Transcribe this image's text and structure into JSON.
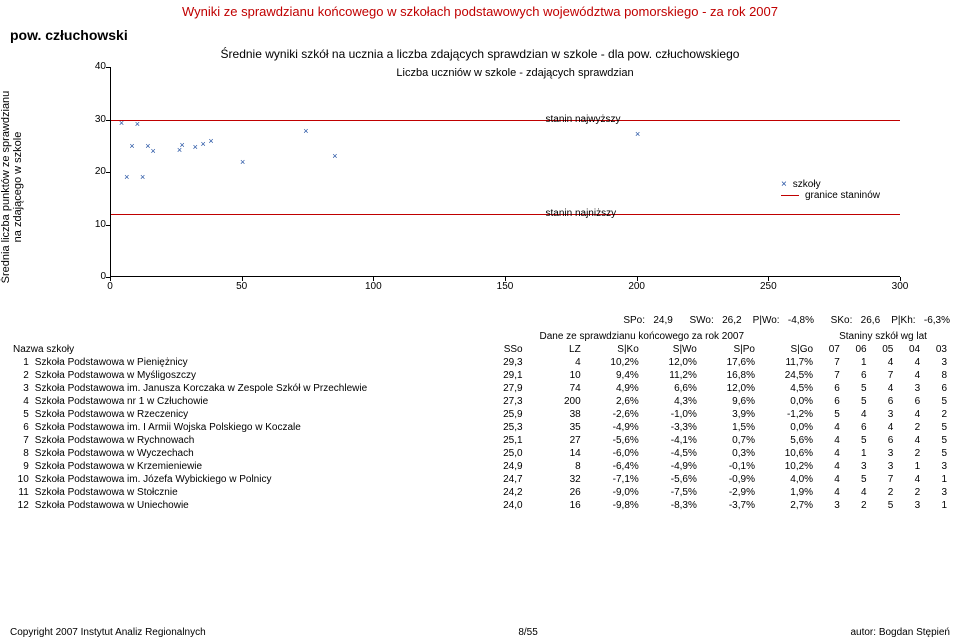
{
  "page_title": "Wyniki ze sprawdzianu końcowego w szkołach podstawowych województwa pomorskiego - za rok 2007",
  "subtitle": "pow. człuchowski",
  "chart_title": "Średnie wyniki szkół na ucznia a liczba zdających sprawdzian w szkole - dla pow. człuchowskiego",
  "chart": {
    "ylabel": "Średnia liczba punktów ze sprawdzianu na zdającego w szkole",
    "xlabel": "Liczba uczniów w szkole - zdających sprawdzian",
    "xlim": [
      0,
      300
    ],
    "ylim": [
      0,
      40
    ],
    "yticks": [
      0,
      10,
      20,
      30,
      40
    ],
    "xticks": [
      0,
      50,
      100,
      150,
      200,
      250,
      300
    ],
    "marker_color": "#1f4ea1",
    "line_color": "#c00000",
    "stanin_low": {
      "y": 12,
      "label": "stanin najniższy"
    },
    "stanin_high": {
      "y": 30,
      "label": "stanin najwyższy"
    },
    "legend": {
      "schools": "szkoły",
      "bounds": "granice staninów"
    },
    "points": [
      {
        "x": 4,
        "y": 29.3
      },
      {
        "x": 10,
        "y": 29.1
      },
      {
        "x": 74,
        "y": 27.9
      },
      {
        "x": 200,
        "y": 27.3
      },
      {
        "x": 38,
        "y": 25.9
      },
      {
        "x": 35,
        "y": 25.3
      },
      {
        "x": 27,
        "y": 25.1
      },
      {
        "x": 14,
        "y": 25.0
      },
      {
        "x": 8,
        "y": 24.9
      },
      {
        "x": 32,
        "y": 24.7
      },
      {
        "x": 26,
        "y": 24.2
      },
      {
        "x": 16,
        "y": 24.0
      },
      {
        "x": 85,
        "y": 23.0
      },
      {
        "x": 50,
        "y": 22.0
      },
      {
        "x": 12,
        "y": 19.0
      },
      {
        "x": 6,
        "y": 19.0
      }
    ]
  },
  "stats": {
    "SPo_label": "SPo:",
    "SPo": "24,9",
    "SWo_label": "SWo:",
    "SWo": "26,2",
    "PWo_label": "P|Wo:",
    "PWo": "-4,8%",
    "SKo_label": "SKo:",
    "SKo": "26,6",
    "PKh_label": "P|Kh:",
    "PKh": "-6,3%"
  },
  "table": {
    "name_header": "Nazwa szkoły",
    "group1": "Dane ze sprawdzianu końcowego za rok 2007",
    "group2": "Staniny szkół wg lat",
    "cols1": [
      "SSo",
      "LZ",
      "S|Ko",
      "S|Wo",
      "S|Po",
      "S|Go"
    ],
    "cols2": [
      "07",
      "06",
      "05",
      "04",
      "03"
    ],
    "rows": [
      {
        "n": "1",
        "name": "Szkoła Podstawowa w Pieniężnicy",
        "v": [
          "29,3",
          "4",
          "10,2%",
          "12,0%",
          "17,6%",
          "11,7%",
          "7",
          "1",
          "4",
          "4",
          "3"
        ]
      },
      {
        "n": "2",
        "name": "Szkoła Podstawowa w Myśligoszczy",
        "v": [
          "29,1",
          "10",
          "9,4%",
          "11,2%",
          "16,8%",
          "24,5%",
          "7",
          "6",
          "7",
          "4",
          "8"
        ]
      },
      {
        "n": "3",
        "name": "Szkoła Podstawowa im. Janusza Korczaka w Zespole Szkół w Przechlewie",
        "v": [
          "27,9",
          "74",
          "4,9%",
          "6,6%",
          "12,0%",
          "4,5%",
          "6",
          "5",
          "4",
          "3",
          "6"
        ]
      },
      {
        "n": "4",
        "name": "Szkoła Podstawowa nr 1 w Człuchowie",
        "v": [
          "27,3",
          "200",
          "2,6%",
          "4,3%",
          "9,6%",
          "0,0%",
          "6",
          "5",
          "6",
          "6",
          "5"
        ]
      },
      {
        "n": "5",
        "name": "Szkoła Podstawowa w Rzeczenicy",
        "v": [
          "25,9",
          "38",
          "-2,6%",
          "-1,0%",
          "3,9%",
          "-1,2%",
          "5",
          "4",
          "3",
          "4",
          "2"
        ]
      },
      {
        "n": "6",
        "name": "Szkoła Podstawowa im. I Armii Wojska Polskiego w Koczale",
        "v": [
          "25,3",
          "35",
          "-4,9%",
          "-3,3%",
          "1,5%",
          "0,0%",
          "4",
          "6",
          "4",
          "2",
          "5"
        ]
      },
      {
        "n": "7",
        "name": "Szkoła Podstawowa w Rychnowach",
        "v": [
          "25,1",
          "27",
          "-5,6%",
          "-4,1%",
          "0,7%",
          "5,6%",
          "4",
          "5",
          "6",
          "4",
          "5"
        ]
      },
      {
        "n": "8",
        "name": "Szkoła Podstawowa w Wyczechach",
        "v": [
          "25,0",
          "14",
          "-6,0%",
          "-4,5%",
          "0,3%",
          "10,6%",
          "4",
          "1",
          "3",
          "2",
          "5"
        ]
      },
      {
        "n": "9",
        "name": "Szkoła Podstawowa w Krzemieniewie",
        "v": [
          "24,9",
          "8",
          "-6,4%",
          "-4,9%",
          "-0,1%",
          "10,2%",
          "4",
          "3",
          "3",
          "1",
          "3"
        ]
      },
      {
        "n": "10",
        "name": "Szkoła Podstawowa im. Józefa Wybickiego w Polnicy",
        "v": [
          "24,7",
          "32",
          "-7,1%",
          "-5,6%",
          "-0,9%",
          "4,0%",
          "4",
          "5",
          "7",
          "4",
          "1"
        ]
      },
      {
        "n": "11",
        "name": "Szkoła Podstawowa w Stołcznie",
        "v": [
          "24,2",
          "26",
          "-9,0%",
          "-7,5%",
          "-2,9%",
          "1,9%",
          "4",
          "4",
          "2",
          "2",
          "3"
        ]
      },
      {
        "n": "12",
        "name": "Szkoła Podstawowa w Uniechowie",
        "v": [
          "24,0",
          "16",
          "-9,8%",
          "-8,3%",
          "-3,7%",
          "2,7%",
          "3",
          "2",
          "5",
          "3",
          "1"
        ]
      }
    ]
  },
  "footer": {
    "left": "Copyright 2007 Instytut Analiz Regionalnych",
    "center": "8/55",
    "right": "autor: Bogdan Stępień"
  }
}
